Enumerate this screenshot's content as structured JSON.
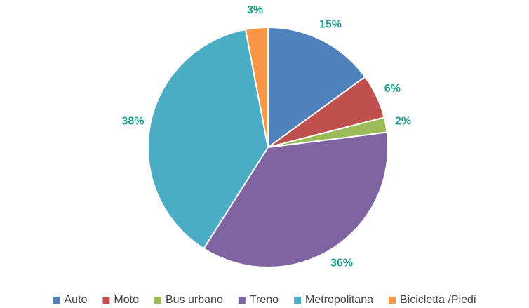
{
  "chart_data": {
    "type": "pie",
    "categories": [
      "Auto",
      "Moto",
      "Bus urbano",
      "Treno",
      "Metropolitana",
      "Bicicletta /Piedi"
    ],
    "values": [
      15,
      6,
      2,
      36,
      38,
      3
    ],
    "value_labels": [
      "15%",
      "6%",
      "2%",
      "36%",
      "38%",
      "3%"
    ],
    "colors": [
      "#4f81bd",
      "#c0504d",
      "#9bbb59",
      "#8064a2",
      "#4bacc6",
      "#f79646"
    ],
    "legend": "bottom"
  }
}
